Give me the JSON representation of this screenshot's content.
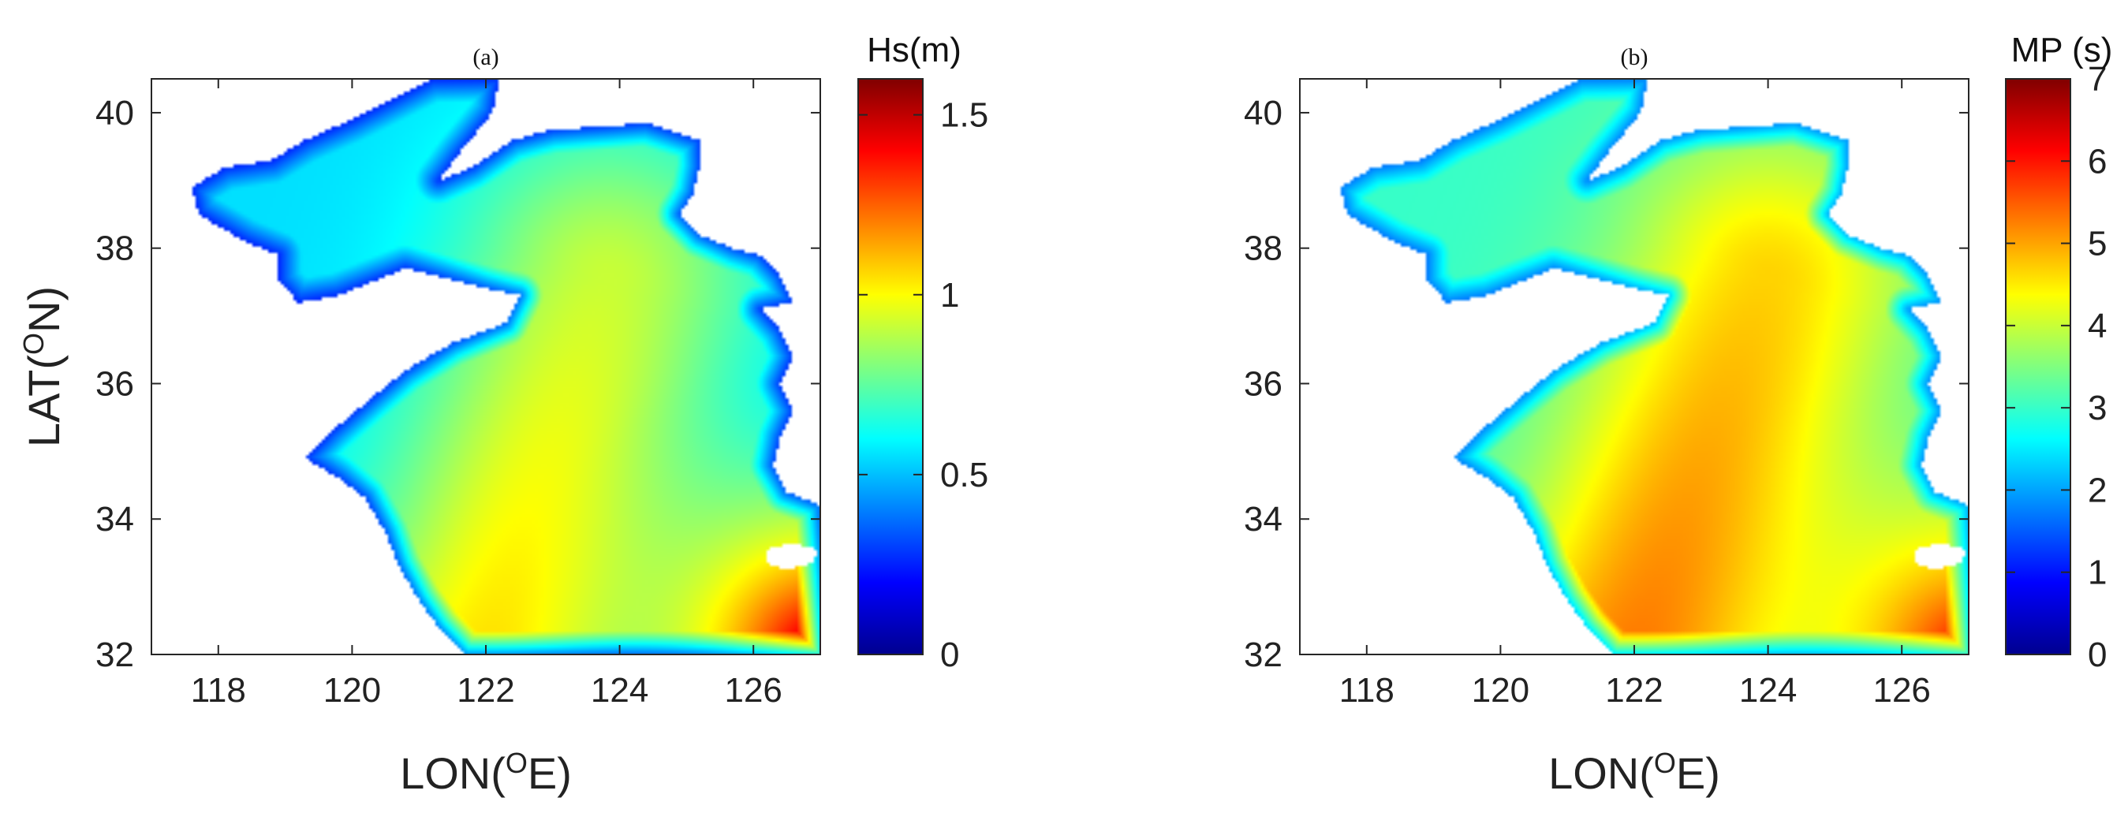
{
  "chart_data": [
    {
      "type": "heatmap",
      "title": "(a)",
      "xlabel": "LON(",
      "xlabel_sup": "O",
      "xlabel_tail": "E)",
      "ylabel": "LAT(",
      "ylabel_sup": "O",
      "ylabel_tail": "N)",
      "xlim": [
        117,
        127
      ],
      "ylim": [
        32,
        40.5
      ],
      "xticks": [
        118,
        120,
        122,
        124,
        126
      ],
      "yticks": [
        32,
        34,
        36,
        38,
        40
      ],
      "colorbar": {
        "label": "Hs(m)",
        "range": [
          0,
          1.6
        ],
        "ticks": [
          0,
          0.5,
          1,
          1.5
        ],
        "ticklabels": [
          "0",
          "0.5",
          "1",
          "1.5"
        ],
        "colormap": "jet"
      },
      "field": {
        "sea_min": 0.55,
        "shore_min": 0.1,
        "ridge_start": [
          122.0,
          32.0
        ],
        "ridge_end": [
          123.8,
          37.5
        ],
        "values_note_free": true,
        "ridge_peak": 1.05,
        "southeast_peak": 1.6,
        "southeast_point": [
          127,
          32
        ]
      },
      "grid": false
    },
    {
      "type": "heatmap",
      "title": "(b)",
      "xlabel": "LON(",
      "xlabel_sup": "O",
      "xlabel_tail": "E)",
      "ylabel": "",
      "xlim": [
        117,
        127
      ],
      "ylim": [
        32,
        40.5
      ],
      "xticks": [
        118,
        120,
        122,
        124,
        126
      ],
      "yticks": [
        32,
        34,
        36,
        38,
        40
      ],
      "colorbar": {
        "label": "MP (s)",
        "range": [
          0,
          7
        ],
        "ticks": [
          0,
          1,
          2,
          3,
          4,
          5,
          6,
          7
        ],
        "ticklabels": [
          "0",
          "1",
          "2",
          "3",
          "4",
          "5",
          "6",
          "7"
        ],
        "colormap": "jet"
      },
      "field": {
        "sea_min": 3.0,
        "shore_min": 1.0,
        "ridge_start": [
          122.0,
          32.0
        ],
        "ridge_end": [
          124.0,
          37.5
        ],
        "ridge_peak": 5.3,
        "southeast_peak": 6.3,
        "southeast_point": [
          127,
          32
        ]
      },
      "grid": false
    }
  ],
  "region": {
    "coastline": [
      [
        121.2,
        40.5
      ],
      [
        122.2,
        40.5
      ],
      [
        122.1,
        40.0
      ],
      [
        121.6,
        39.4
      ],
      [
        121.3,
        39.0
      ],
      [
        121.8,
        39.2
      ],
      [
        122.4,
        39.6
      ],
      [
        123.0,
        39.75
      ],
      [
        123.8,
        39.8
      ],
      [
        124.4,
        39.85
      ],
      [
        125.2,
        39.6
      ],
      [
        125.2,
        39.2
      ],
      [
        125.1,
        38.8
      ],
      [
        124.9,
        38.5
      ],
      [
        125.2,
        38.2
      ],
      [
        125.7,
        38.0
      ],
      [
        126.1,
        37.9
      ],
      [
        126.4,
        37.6
      ],
      [
        126.6,
        37.2
      ],
      [
        126.1,
        37.1
      ],
      [
        126.4,
        36.8
      ],
      [
        126.6,
        36.4
      ],
      [
        126.4,
        36.0
      ],
      [
        126.6,
        35.6
      ],
      [
        126.4,
        35.2
      ],
      [
        126.3,
        34.8
      ],
      [
        126.5,
        34.4
      ],
      [
        127.0,
        34.2
      ],
      [
        127.0,
        32.0
      ],
      [
        121.7,
        32.0
      ],
      [
        121.3,
        32.4
      ],
      [
        121.0,
        32.8
      ],
      [
        120.7,
        33.3
      ],
      [
        120.5,
        33.8
      ],
      [
        120.2,
        34.3
      ],
      [
        119.8,
        34.6
      ],
      [
        119.3,
        34.9
      ],
      [
        119.7,
        35.3
      ],
      [
        120.3,
        35.8
      ],
      [
        120.8,
        36.2
      ],
      [
        121.5,
        36.6
      ],
      [
        122.3,
        36.9
      ],
      [
        122.5,
        37.3
      ],
      [
        122.0,
        37.4
      ],
      [
        121.2,
        37.6
      ],
      [
        120.8,
        37.7
      ],
      [
        120.3,
        37.5
      ],
      [
        119.8,
        37.3
      ],
      [
        119.2,
        37.2
      ],
      [
        118.9,
        37.5
      ],
      [
        118.9,
        37.9
      ],
      [
        118.4,
        38.1
      ],
      [
        117.7,
        38.5
      ],
      [
        117.6,
        38.9
      ],
      [
        118.1,
        39.2
      ],
      [
        118.8,
        39.3
      ],
      [
        119.3,
        39.6
      ],
      [
        120.0,
        39.9
      ],
      [
        120.6,
        40.2
      ],
      [
        121.2,
        40.5
      ]
    ],
    "islands": [
      [
        [
          126.2,
          33.35
        ],
        [
          126.5,
          33.25
        ],
        [
          126.9,
          33.35
        ],
        [
          126.95,
          33.55
        ],
        [
          126.6,
          33.65
        ],
        [
          126.2,
          33.55
        ]
      ]
    ]
  }
}
